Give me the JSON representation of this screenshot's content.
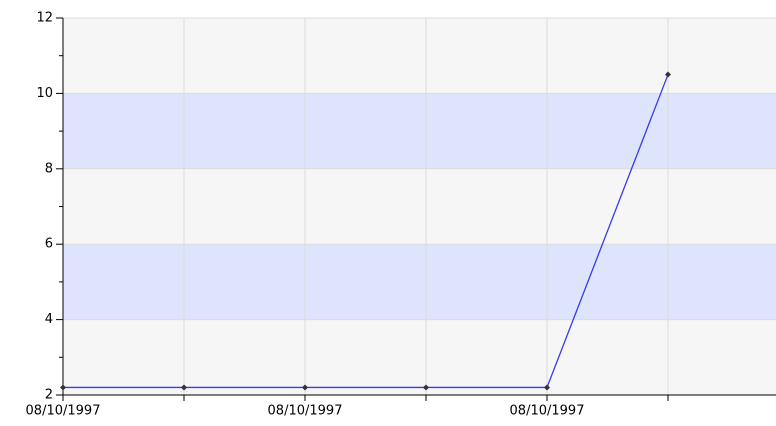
{
  "chart_data": {
    "type": "line",
    "categories": [
      "08/10/1997",
      null,
      "08/10/1997",
      null,
      "08/10/1997",
      null
    ],
    "series": [
      {
        "color": "#3a3ae8",
        "values": [
          2.2,
          2.2,
          2.2,
          2.2,
          2.2,
          10.5
        ]
      }
    ],
    "ylim": [
      2,
      12
    ],
    "yticks": [
      2,
      4,
      6,
      8,
      10,
      12
    ],
    "yminor_ticks": [
      3,
      5,
      7,
      9,
      11
    ],
    "band_colors": [
      "#f6f6f6",
      "#dde4fb"
    ],
    "grid": true,
    "marker_color": "#333333"
  }
}
